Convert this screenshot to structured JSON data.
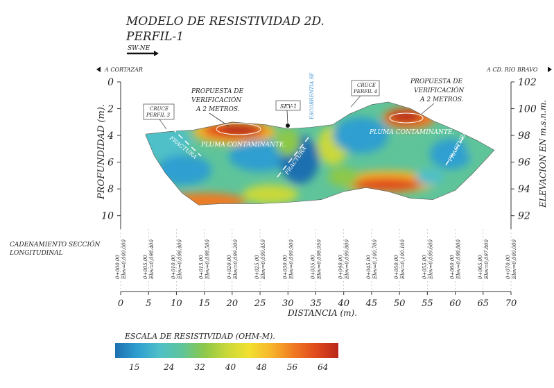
{
  "header": {
    "title": "MODELO DE RESISTIVIDAD 2D.",
    "subtitle": "PERFIL-1",
    "direction": "SW-NE",
    "left_direction": "A CORTAZAR",
    "right_direction": "A CD. RIO BRAVO"
  },
  "side_label": {
    "line1": "CADENAMIENTO SECCIÓN",
    "line2": "LONGITUDINAL"
  },
  "annotations": {
    "cruce3_a": "CRUCE",
    "cruce3_b": "PERFIL 3",
    "cruce4_a": "CRUCE",
    "cruce4_b": "PERFIL 4",
    "prop1_a": "PROPUESTA DE",
    "prop1_b": "VERIFICACIÓN",
    "prop1_c": "A 2 METROS.",
    "prop2_a": "PROPUESTA DE",
    "prop2_b": "VERIFICACIÓN",
    "prop2_c": "A 2 METROS.",
    "sev": "SEV-1",
    "escorrentia": "ESCORRENTIA SE",
    "pluma1": "PLUMA CONTAMINANTE.",
    "pluma2": "PLUMA CONTAMINANTE.",
    "fractura1": "FRACTURA",
    "fractura2": "FRACTURA",
    "fractura3": "FRACTURA"
  },
  "colors": {
    "scale": [
      "#1d6fb0",
      "#2e9fd0",
      "#4fc0c8",
      "#5fc49a",
      "#8cc84a",
      "#c9d83a",
      "#f2e030",
      "#f7b52c",
      "#f07a22",
      "#e04a1c",
      "#b8281a"
    ]
  },
  "chart_data": {
    "type": "heatmap",
    "xlabel": "DISTANCIA (m).",
    "ylabel_left": "PROFUNDIDAD (m).",
    "ylabel_right": "ELEVACION EN m.s.n.m.",
    "x_ticks": [
      0,
      5,
      10,
      15,
      20,
      25,
      30,
      35,
      40,
      45,
      50,
      55,
      60,
      65,
      70
    ],
    "xlim": [
      0,
      70
    ],
    "depth_ticks": [
      0,
      2,
      4,
      6,
      8,
      10
    ],
    "depth_lim": [
      0,
      11
    ],
    "elevation_ticks": [
      102,
      100,
      98,
      96,
      94,
      92
    ],
    "stations": [
      {
        "x": 0,
        "chain": "0+000.00",
        "elev": "Elev=0,000.000"
      },
      {
        "x": 5,
        "chain": "0+005.00",
        "elev": "Elev=0,098.400"
      },
      {
        "x": 10,
        "chain": "0+010.00",
        "elev": "Elev=0,098.400"
      },
      {
        "x": 15,
        "chain": "0+015.00",
        "elev": "Elev=0,098.500"
      },
      {
        "x": 20,
        "chain": "0+020.00",
        "elev": "Elev=0,099.200"
      },
      {
        "x": 25,
        "chain": "0+025.00",
        "elev": "Elev=0,099.450"
      },
      {
        "x": 30,
        "chain": "0+030.00",
        "elev": "Elev=0,099.900"
      },
      {
        "x": 35,
        "chain": "0+035.00",
        "elev": "Elev=0,098.950"
      },
      {
        "x": 40,
        "chain": "0+040.00",
        "elev": "Elev=0,099.800"
      },
      {
        "x": 45,
        "chain": "0+045.00",
        "elev": "Elev=0,100.700"
      },
      {
        "x": 50,
        "chain": "0+050.00",
        "elev": "Elev=0,100.100"
      },
      {
        "x": 55,
        "chain": "0+055.00",
        "elev": "Elev=0,099.600"
      },
      {
        "x": 60,
        "chain": "0+060.00",
        "elev": "Elev=0,098.800"
      },
      {
        "x": 65,
        "chain": "0+065.00",
        "elev": "Elev=0,097.800"
      },
      {
        "x": 70,
        "chain": "0+070.00",
        "elev": "Elev=0,000.000"
      }
    ],
    "profile_top": [
      [
        4.5,
        3.9
      ],
      [
        9,
        3.7
      ],
      [
        13,
        3.6
      ],
      [
        20,
        3.0
      ],
      [
        26,
        3.2
      ],
      [
        30,
        3.5
      ],
      [
        34,
        3.4
      ],
      [
        38,
        3.2
      ],
      [
        41,
        2.4
      ],
      [
        45,
        1.7
      ],
      [
        48,
        1.5
      ],
      [
        52,
        2.0
      ],
      [
        56,
        2.9
      ],
      [
        60,
        3.6
      ],
      [
        64,
        4.4
      ],
      [
        67,
        5.1
      ]
    ],
    "profile_bottom": [
      [
        67,
        5.1
      ],
      [
        63,
        6.9
      ],
      [
        60,
        8.1
      ],
      [
        56,
        8.8
      ],
      [
        52,
        8.7
      ],
      [
        48,
        8.2
      ],
      [
        44,
        7.9
      ],
      [
        40,
        8.2
      ],
      [
        36,
        8.8
      ],
      [
        30,
        9.0
      ],
      [
        25,
        9.1
      ],
      [
        18,
        9.1
      ],
      [
        14,
        9.2
      ],
      [
        11,
        8.3
      ],
      [
        8,
        6.8
      ],
      [
        6,
        5.5
      ],
      [
        4.5,
        4.0
      ]
    ],
    "scale": {
      "title": "ESCALA DE RESISTIVIDAD (OHM-M).",
      "ticks": [
        15,
        24,
        32,
        40,
        48,
        56,
        64
      ],
      "range": [
        10,
        68
      ]
    }
  }
}
